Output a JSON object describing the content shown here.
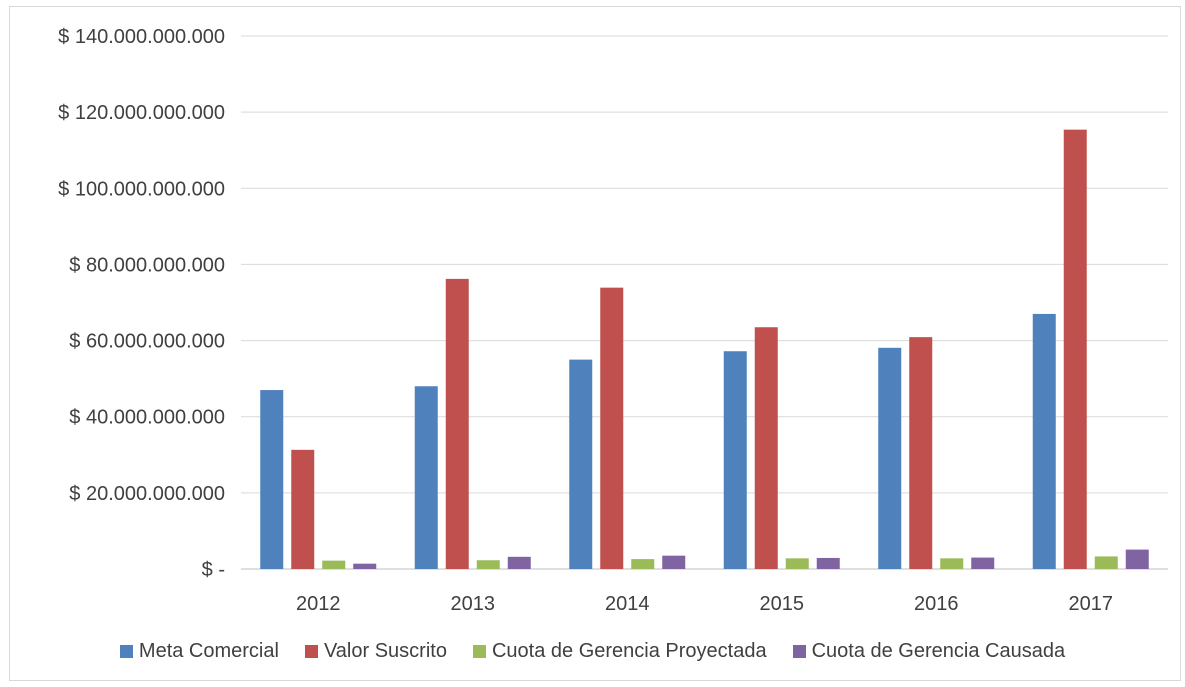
{
  "chart_data": {
    "type": "bar",
    "categories": [
      "2012",
      "2013",
      "2014",
      "2015",
      "2016",
      "2017"
    ],
    "series": [
      {
        "name": "Meta Comercial",
        "color": "#4f81bd",
        "values": [
          47000000000,
          48000000000,
          55000000000,
          57200000000,
          58100000000,
          67000000000
        ]
      },
      {
        "name": "Valor Suscrito",
        "color": "#c0504d",
        "values": [
          31300000000,
          76200000000,
          73900000000,
          63500000000,
          60900000000,
          115400000000
        ]
      },
      {
        "name": "Cuota de Gerencia Proyectada",
        "color": "#9bbb59",
        "values": [
          2200000000,
          2300000000,
          2600000000,
          2800000000,
          2800000000,
          3300000000
        ]
      },
      {
        "name": "Cuota de Gerencia Causada",
        "color": "#8064a2",
        "values": [
          1400000000,
          3200000000,
          3500000000,
          2900000000,
          3000000000,
          5100000000
        ]
      }
    ],
    "ylim": [
      0,
      140000000000
    ],
    "y_ticks": [
      0,
      20000000000,
      40000000000,
      60000000000,
      80000000000,
      100000000000,
      120000000000,
      140000000000
    ],
    "y_tick_labels": [
      "$ -",
      "$ 20.000.000.000",
      "$ 40.000.000.000",
      "$ 60.000.000.000",
      "$ 80.000.000.000",
      "$ 100.000.000.000",
      "$ 120.000.000.000",
      "$ 140.000.000.000"
    ],
    "grid": true,
    "legend": "bottom",
    "title": "",
    "xlabel": "",
    "ylabel": ""
  },
  "legend": {
    "items": [
      {
        "label": "Meta Comercial",
        "color": "#4f81bd"
      },
      {
        "label": "Valor Suscrito",
        "color": "#c0504d"
      },
      {
        "label": "Cuota de Gerencia Proyectada",
        "color": "#9bbb59"
      },
      {
        "label": "Cuota de Gerencia Causada",
        "color": "#8064a2"
      }
    ]
  }
}
